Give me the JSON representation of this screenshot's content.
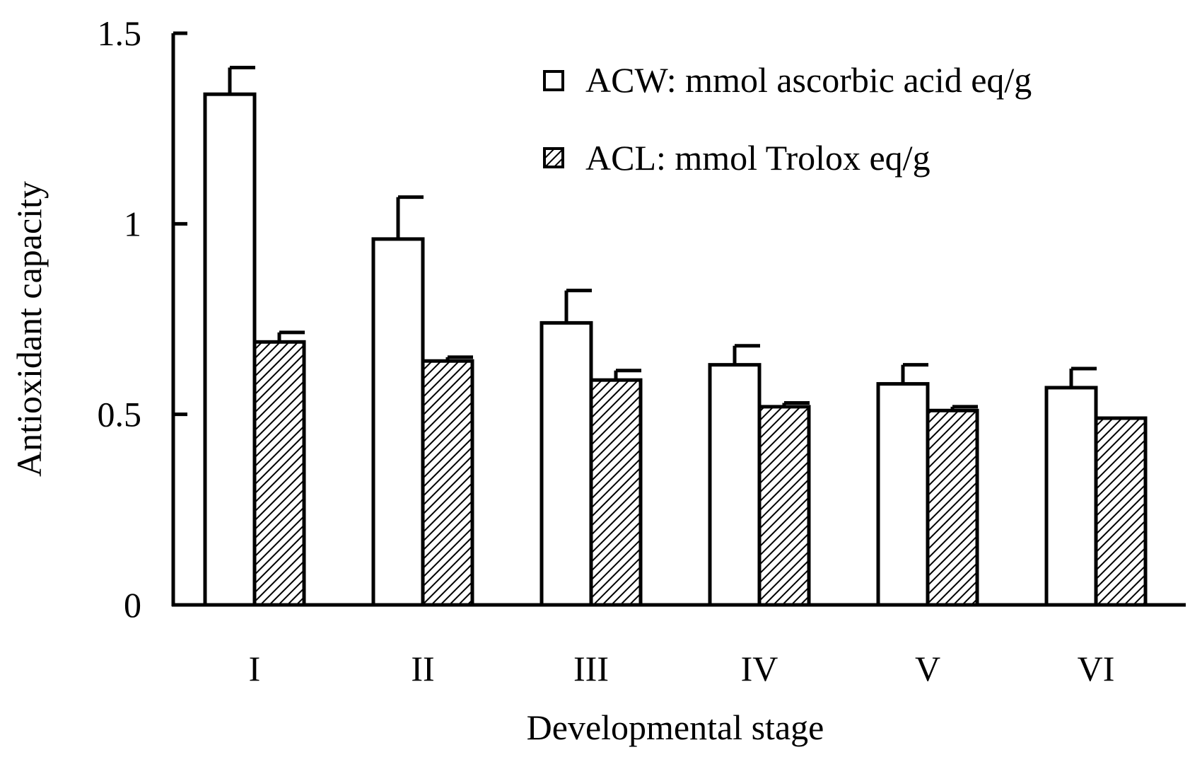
{
  "chart_data": {
    "type": "bar",
    "title": "",
    "xlabel": "Developmental stage",
    "ylabel": "Antioxidant capacity",
    "ylim": [
      0,
      1.5
    ],
    "yticks": [
      0,
      0.5,
      1,
      1.5
    ],
    "ytick_labels": [
      "0",
      "0.5",
      "1",
      "1.5"
    ],
    "categories": [
      "I",
      "II",
      "III",
      "IV",
      "V",
      "VI"
    ],
    "series": [
      {
        "name": "ACW: mmol ascorbic acid eq/g",
        "fill": "open",
        "values": [
          1.34,
          0.96,
          0.74,
          0.63,
          0.58,
          0.57
        ],
        "errors": [
          0.07,
          0.11,
          0.085,
          0.05,
          0.05,
          0.05
        ]
      },
      {
        "name": "ACL: mmol Trolox eq/g",
        "fill": "hatched",
        "values": [
          0.69,
          0.64,
          0.59,
          0.52,
          0.51,
          0.49
        ],
        "errors": [
          0.025,
          0.01,
          0.025,
          0.01,
          0.01,
          0.0
        ]
      }
    ],
    "legend_position": "top-right",
    "grid": false,
    "colors": {
      "stroke": "#000000",
      "background": "#ffffff",
      "hatch": "#000000"
    }
  }
}
